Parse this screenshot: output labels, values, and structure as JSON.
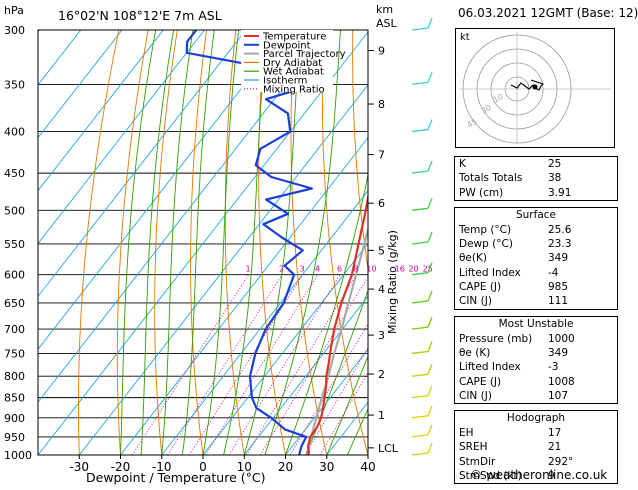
{
  "header": {
    "hpa_label": "hPa",
    "location": "16°02'N  108°12'E  7m  ASL",
    "km_label": "km",
    "asl_label": "ASL",
    "datetime": "06.03.2021  12GMT  (Base: 12)"
  },
  "legend": [
    "Temperature",
    "Dewpoint",
    "Parcel Trajectory",
    "Dry Adiabat",
    "Wet Adiabat",
    "Isotherm",
    "Mixing Ratio"
  ],
  "legend_colors": [
    "#e0302a",
    "#1a3fd8",
    "#a8a8a8",
    "#e67800",
    "#2fa000",
    "#23a6e0",
    "#d0008c"
  ],
  "chart_data": {
    "type": "skew-t",
    "title": "16°02'N  108°12'E  7m  ASL",
    "xlabel": "Dewpoint / Temperature (°C)",
    "ylabel_left": "hPa",
    "ylabel_right": "Mixing Ratio (g/kg)",
    "pressure_levels": [
      300,
      350,
      400,
      450,
      500,
      550,
      600,
      650,
      700,
      750,
      800,
      850,
      900,
      950,
      1000
    ],
    "temp_ticks": [
      -30,
      -20,
      -10,
      0,
      10,
      20,
      30,
      40
    ],
    "km_ticks": [
      {
        "label": "9",
        "p": 318
      },
      {
        "label": "8",
        "p": 370
      },
      {
        "label": "7",
        "p": 427
      },
      {
        "label": "6",
        "p": 490
      },
      {
        "label": "5",
        "p": 560
      },
      {
        "label": "4",
        "p": 625
      },
      {
        "label": "3",
        "p": 712
      },
      {
        "label": "2",
        "p": 795
      },
      {
        "label": "1",
        "p": 893
      },
      {
        "label": "LCL",
        "p": 980
      }
    ],
    "mixing_ratio_labels": [
      "1",
      "2",
      "3",
      "4",
      "6",
      "8",
      "10",
      "16",
      "20",
      "25"
    ],
    "mixing_ratio_values": [
      1,
      2,
      3,
      4,
      6,
      8,
      10,
      16,
      20,
      25
    ],
    "temperature_profile": [
      [
        1000,
        25.6
      ],
      [
        975,
        23.8
      ],
      [
        950,
        22.6
      ],
      [
        925,
        22.4
      ],
      [
        900,
        21.6
      ],
      [
        875,
        20.2
      ],
      [
        850,
        18.6
      ],
      [
        825,
        17.0
      ],
      [
        800,
        15.0
      ],
      [
        775,
        13.4
      ],
      [
        750,
        11.6
      ],
      [
        725,
        9.8
      ],
      [
        700,
        8.0
      ],
      [
        650,
        4.8
      ],
      [
        600,
        2.0
      ],
      [
        550,
        -2.2
      ],
      [
        500,
        -6.8
      ],
      [
        450,
        -12.2
      ],
      [
        400,
        -18.6
      ],
      [
        380,
        -21.4
      ],
      [
        350,
        -26.8
      ]
    ],
    "dewpoint_profile": [
      [
        1000,
        23.3
      ],
      [
        975,
        22.2
      ],
      [
        950,
        21.6
      ],
      [
        930,
        15.0
      ],
      [
        900,
        9.5
      ],
      [
        875,
        4.0
      ],
      [
        850,
        1.0
      ],
      [
        800,
        -3.5
      ],
      [
        750,
        -6.5
      ],
      [
        700,
        -8.6
      ],
      [
        650,
        -9.2
      ],
      [
        600,
        -12.0
      ],
      [
        585,
        -16.0
      ],
      [
        560,
        -14.5
      ],
      [
        540,
        -22.0
      ],
      [
        520,
        -29.0
      ],
      [
        505,
        -25.0
      ],
      [
        485,
        -33.0
      ],
      [
        470,
        -24.0
      ],
      [
        455,
        -36.0
      ],
      [
        440,
        -42.0
      ],
      [
        420,
        -44.0
      ],
      [
        400,
        -40.0
      ],
      [
        380,
        -44.0
      ],
      [
        365,
        -52.0
      ],
      [
        355,
        -46.0
      ],
      [
        345,
        -50.0
      ],
      [
        340,
        -56.0
      ],
      [
        330,
        -64.0
      ],
      [
        320,
        -80.0
      ],
      [
        310,
        -82.0
      ],
      [
        300,
        -82.0
      ]
    ],
    "parcel_profile": [
      [
        1000,
        25.6
      ],
      [
        980,
        24.4
      ],
      [
        950,
        22.8
      ],
      [
        900,
        20.4
      ],
      [
        850,
        18.0
      ],
      [
        800,
        15.5
      ],
      [
        750,
        12.6
      ],
      [
        700,
        9.8
      ],
      [
        650,
        6.5
      ],
      [
        600,
        3.0
      ],
      [
        550,
        -0.8
      ],
      [
        500,
        -5.0
      ],
      [
        450,
        -9.6
      ],
      [
        400,
        -14.8
      ],
      [
        350,
        -20.5
      ],
      [
        300,
        -27.0
      ]
    ],
    "wind_barb_levels": [
      300,
      350,
      400,
      450,
      500,
      550,
      600,
      650,
      700,
      750,
      800,
      850,
      900,
      950,
      1000
    ]
  },
  "hodograph": {
    "label": "kt",
    "ring_labels": [
      "10",
      "30",
      "45"
    ]
  },
  "indices": {
    "rows": [
      {
        "label": "K",
        "value": "25"
      },
      {
        "label": "Totals Totals",
        "value": "38"
      },
      {
        "label": "PW (cm)",
        "value": "3.91"
      }
    ]
  },
  "surface": {
    "title": "Surface",
    "rows": [
      {
        "label": "Temp (°C)",
        "value": "25.6"
      },
      {
        "label": "Dewp (°C)",
        "value": "23.3"
      },
      {
        "label": "θe(K)",
        "value": "349"
      },
      {
        "label": "Lifted Index",
        "value": "-4"
      },
      {
        "label": "CAPE (J)",
        "value": "985"
      },
      {
        "label": "CIN (J)",
        "value": "111"
      }
    ]
  },
  "most_unstable": {
    "title": "Most Unstable",
    "rows": [
      {
        "label": "Pressure (mb)",
        "value": "1000"
      },
      {
        "label": "θe (K)",
        "value": "349"
      },
      {
        "label": "Lifted Index",
        "value": "-3"
      },
      {
        "label": "CAPE (J)",
        "value": "1008"
      },
      {
        "label": "CIN (J)",
        "value": "107"
      }
    ]
  },
  "hodograph_table": {
    "title": "Hodograph",
    "rows": [
      {
        "label": "EH",
        "value": "17"
      },
      {
        "label": "SREH",
        "value": "21"
      },
      {
        "label": "StmDir",
        "value": "292°"
      },
      {
        "label": "StmSpd (kt)",
        "value": "9"
      }
    ]
  },
  "credit": "© weatheronline.co.uk"
}
